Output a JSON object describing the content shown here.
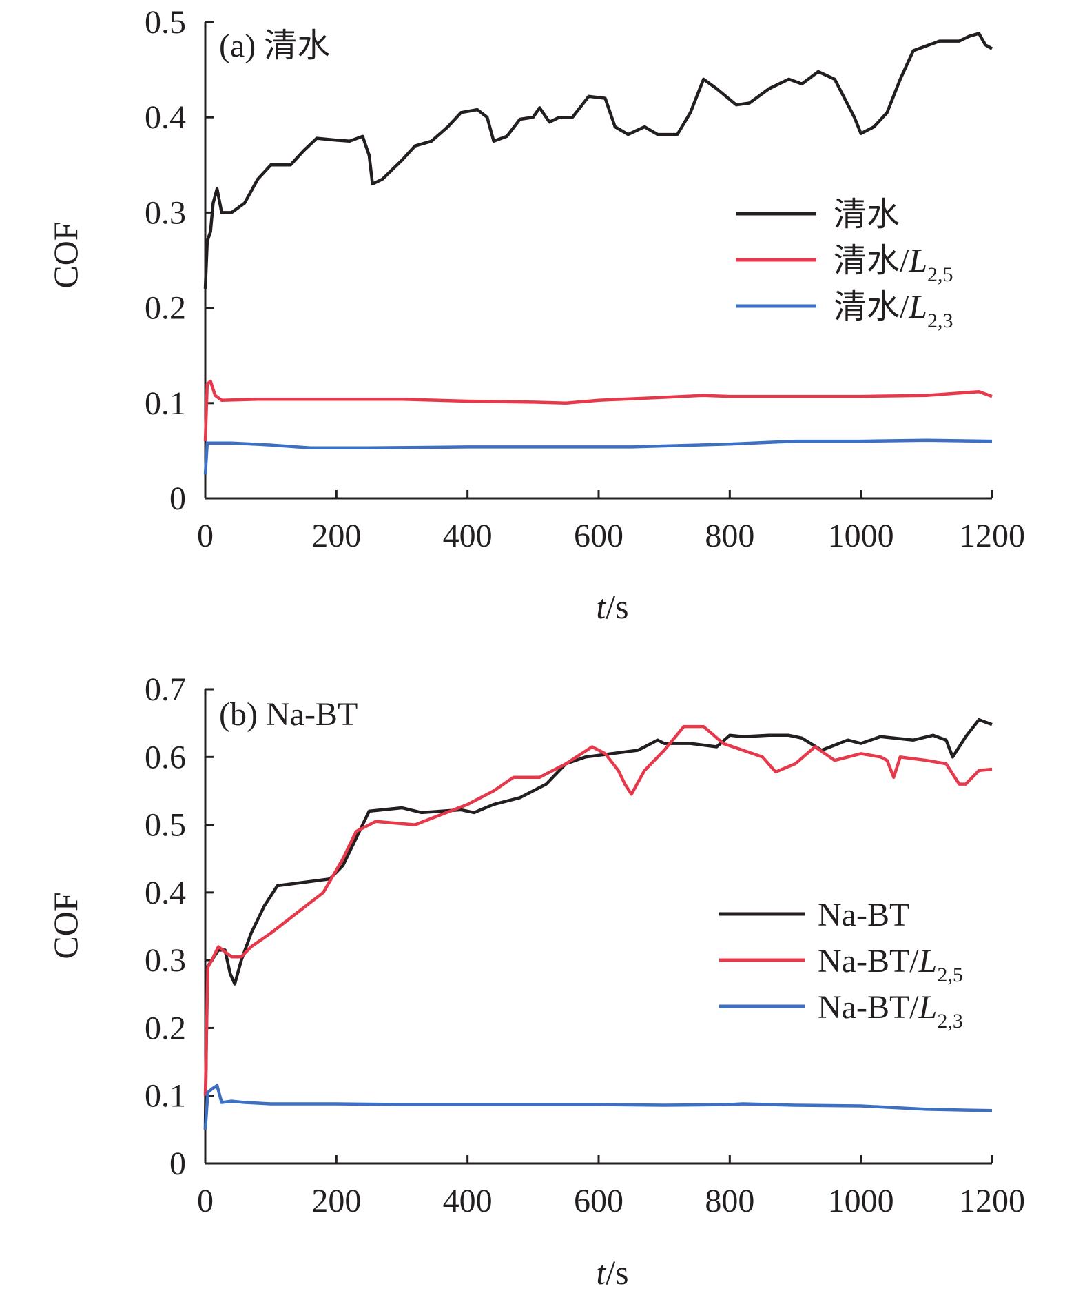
{
  "chart_data": [
    {
      "type": "line",
      "panel_label": "(a) 清水",
      "xlabel": {
        "var": "t",
        "unit": "/s"
      },
      "ylabel": "COF",
      "xlim": [
        0,
        1200
      ],
      "ylim": [
        0,
        0.5
      ],
      "xticks": [
        "0",
        "200",
        "400",
        "600",
        "800",
        "1000",
        "1200"
      ],
      "yticks": [
        "0",
        "0.1",
        "0.2",
        "0.3",
        "0.4",
        "0.5"
      ],
      "legend_position": "right",
      "series": [
        {
          "name": "清水",
          "legend_main": "清水",
          "legend_italic": "",
          "legend_sub": "",
          "color": "#231f20",
          "points": [
            [
              0,
              0.22
            ],
            [
              3,
              0.27
            ],
            [
              8,
              0.28
            ],
            [
              12,
              0.31
            ],
            [
              18,
              0.325
            ],
            [
              25,
              0.3
            ],
            [
              40,
              0.3
            ],
            [
              60,
              0.31
            ],
            [
              80,
              0.335
            ],
            [
              100,
              0.35
            ],
            [
              130,
              0.35
            ],
            [
              150,
              0.365
            ],
            [
              170,
              0.378
            ],
            [
              200,
              0.376
            ],
            [
              220,
              0.375
            ],
            [
              240,
              0.38
            ],
            [
              250,
              0.36
            ],
            [
              255,
              0.33
            ],
            [
              270,
              0.335
            ],
            [
              300,
              0.355
            ],
            [
              320,
              0.37
            ],
            [
              345,
              0.375
            ],
            [
              370,
              0.39
            ],
            [
              390,
              0.405
            ],
            [
              415,
              0.408
            ],
            [
              430,
              0.4
            ],
            [
              440,
              0.375
            ],
            [
              460,
              0.38
            ],
            [
              480,
              0.398
            ],
            [
              500,
              0.4
            ],
            [
              510,
              0.41
            ],
            [
              525,
              0.395
            ],
            [
              540,
              0.4
            ],
            [
              560,
              0.4
            ],
            [
              585,
              0.422
            ],
            [
              610,
              0.42
            ],
            [
              625,
              0.39
            ],
            [
              645,
              0.382
            ],
            [
              670,
              0.39
            ],
            [
              690,
              0.382
            ],
            [
              720,
              0.382
            ],
            [
              740,
              0.405
            ],
            [
              760,
              0.44
            ],
            [
              780,
              0.43
            ],
            [
              810,
              0.413
            ],
            [
              830,
              0.415
            ],
            [
              860,
              0.43
            ],
            [
              890,
              0.44
            ],
            [
              910,
              0.435
            ],
            [
              935,
              0.448
            ],
            [
              960,
              0.44
            ],
            [
              990,
              0.4
            ],
            [
              1000,
              0.383
            ],
            [
              1020,
              0.39
            ],
            [
              1040,
              0.405
            ],
            [
              1060,
              0.44
            ],
            [
              1080,
              0.47
            ],
            [
              1100,
              0.475
            ],
            [
              1120,
              0.48
            ],
            [
              1150,
              0.48
            ],
            [
              1165,
              0.485
            ],
            [
              1180,
              0.488
            ],
            [
              1190,
              0.476
            ],
            [
              1200,
              0.472
            ]
          ]
        },
        {
          "name": "清水/L2,5",
          "legend_main": "清水/",
          "legend_italic": "L",
          "legend_sub": "2,5",
          "color": "#e63a4c",
          "points": [
            [
              0,
              0.06
            ],
            [
              3,
              0.12
            ],
            [
              8,
              0.123
            ],
            [
              15,
              0.108
            ],
            [
              25,
              0.103
            ],
            [
              80,
              0.104
            ],
            [
              200,
              0.104
            ],
            [
              300,
              0.104
            ],
            [
              400,
              0.102
            ],
            [
              500,
              0.101
            ],
            [
              550,
              0.1
            ],
            [
              600,
              0.103
            ],
            [
              700,
              0.106
            ],
            [
              760,
              0.108
            ],
            [
              800,
              0.107
            ],
            [
              900,
              0.107
            ],
            [
              1000,
              0.107
            ],
            [
              1100,
              0.108
            ],
            [
              1180,
              0.112
            ],
            [
              1200,
              0.107
            ]
          ]
        },
        {
          "name": "清水/L2,3",
          "legend_main": "清水/",
          "legend_italic": "L",
          "legend_sub": "2,3",
          "color": "#3d6fc2",
          "points": [
            [
              0,
              0.025
            ],
            [
              3,
              0.058
            ],
            [
              10,
              0.058
            ],
            [
              40,
              0.058
            ],
            [
              100,
              0.056
            ],
            [
              160,
              0.053
            ],
            [
              250,
              0.053
            ],
            [
              400,
              0.054
            ],
            [
              550,
              0.054
            ],
            [
              650,
              0.054
            ],
            [
              700,
              0.055
            ],
            [
              800,
              0.057
            ],
            [
              900,
              0.06
            ],
            [
              1000,
              0.06
            ],
            [
              1100,
              0.061
            ],
            [
              1200,
              0.06
            ]
          ]
        }
      ]
    },
    {
      "type": "line",
      "panel_label": "(b) Na-BT",
      "xlabel": {
        "var": "t",
        "unit": "/s"
      },
      "ylabel": "COF",
      "xlim": [
        0,
        1200
      ],
      "ylim": [
        0,
        0.7
      ],
      "xticks": [
        "0",
        "200",
        "400",
        "600",
        "800",
        "1000",
        "1200"
      ],
      "yticks": [
        "0",
        "0.1",
        "0.2",
        "0.3",
        "0.4",
        "0.5",
        "0.6",
        "0.7"
      ],
      "legend_position": "right",
      "series": [
        {
          "name": "Na-BT",
          "legend_main": "Na-BT",
          "legend_italic": "",
          "legend_sub": "",
          "color": "#231f20",
          "points": [
            [
              0,
              0.05
            ],
            [
              3,
              0.29
            ],
            [
              10,
              0.3
            ],
            [
              20,
              0.315
            ],
            [
              30,
              0.315
            ],
            [
              38,
              0.28
            ],
            [
              45,
              0.265
            ],
            [
              55,
              0.3
            ],
            [
              70,
              0.34
            ],
            [
              90,
              0.38
            ],
            [
              110,
              0.41
            ],
            [
              150,
              0.415
            ],
            [
              190,
              0.42
            ],
            [
              210,
              0.44
            ],
            [
              230,
              0.48
            ],
            [
              250,
              0.52
            ],
            [
              300,
              0.525
            ],
            [
              330,
              0.518
            ],
            [
              360,
              0.52
            ],
            [
              390,
              0.522
            ],
            [
              410,
              0.518
            ],
            [
              440,
              0.53
            ],
            [
              480,
              0.54
            ],
            [
              520,
              0.56
            ],
            [
              550,
              0.59
            ],
            [
              580,
              0.6
            ],
            [
              620,
              0.605
            ],
            [
              660,
              0.61
            ],
            [
              690,
              0.625
            ],
            [
              700,
              0.62
            ],
            [
              740,
              0.62
            ],
            [
              780,
              0.615
            ],
            [
              800,
              0.632
            ],
            [
              820,
              0.63
            ],
            [
              860,
              0.632
            ],
            [
              890,
              0.632
            ],
            [
              910,
              0.628
            ],
            [
              940,
              0.61
            ],
            [
              980,
              0.625
            ],
            [
              1000,
              0.62
            ],
            [
              1030,
              0.63
            ],
            [
              1080,
              0.625
            ],
            [
              1110,
              0.632
            ],
            [
              1130,
              0.625
            ],
            [
              1140,
              0.6
            ],
            [
              1160,
              0.63
            ],
            [
              1180,
              0.655
            ],
            [
              1200,
              0.648
            ]
          ]
        },
        {
          "name": "Na-BT/L2,5",
          "legend_main": "Na-BT/",
          "legend_italic": "L",
          "legend_sub": "2,5",
          "color": "#e63a4c",
          "points": [
            [
              0,
              0.1
            ],
            [
              4,
              0.29
            ],
            [
              10,
              0.3
            ],
            [
              20,
              0.32
            ],
            [
              40,
              0.305
            ],
            [
              55,
              0.305
            ],
            [
              70,
              0.32
            ],
            [
              100,
              0.34
            ],
            [
              140,
              0.37
            ],
            [
              180,
              0.4
            ],
            [
              210,
              0.45
            ],
            [
              230,
              0.49
            ],
            [
              260,
              0.505
            ],
            [
              320,
              0.5
            ],
            [
              360,
              0.515
            ],
            [
              400,
              0.53
            ],
            [
              440,
              0.55
            ],
            [
              470,
              0.57
            ],
            [
              510,
              0.57
            ],
            [
              550,
              0.59
            ],
            [
              590,
              0.615
            ],
            [
              610,
              0.605
            ],
            [
              630,
              0.58
            ],
            [
              640,
              0.56
            ],
            [
              650,
              0.545
            ],
            [
              670,
              0.58
            ],
            [
              700,
              0.61
            ],
            [
              730,
              0.645
            ],
            [
              760,
              0.645
            ],
            [
              790,
              0.62
            ],
            [
              820,
              0.61
            ],
            [
              850,
              0.6
            ],
            [
              870,
              0.578
            ],
            [
              900,
              0.59
            ],
            [
              930,
              0.615
            ],
            [
              960,
              0.595
            ],
            [
              1000,
              0.605
            ],
            [
              1030,
              0.6
            ],
            [
              1040,
              0.595
            ],
            [
              1050,
              0.57
            ],
            [
              1060,
              0.6
            ],
            [
              1100,
              0.595
            ],
            [
              1130,
              0.59
            ],
            [
              1150,
              0.56
            ],
            [
              1160,
              0.56
            ],
            [
              1180,
              0.58
            ],
            [
              1200,
              0.582
            ]
          ]
        },
        {
          "name": "Na-BT/L2,3",
          "legend_main": "Na-BT/",
          "legend_italic": "L",
          "legend_sub": "2,3",
          "color": "#3d6fc2",
          "points": [
            [
              0,
              0.05
            ],
            [
              4,
              0.105
            ],
            [
              10,
              0.11
            ],
            [
              18,
              0.115
            ],
            [
              25,
              0.09
            ],
            [
              40,
              0.092
            ],
            [
              60,
              0.09
            ],
            [
              100,
              0.088
            ],
            [
              200,
              0.088
            ],
            [
              300,
              0.087
            ],
            [
              400,
              0.087
            ],
            [
              500,
              0.087
            ],
            [
              600,
              0.087
            ],
            [
              700,
              0.086
            ],
            [
              800,
              0.087
            ],
            [
              820,
              0.088
            ],
            [
              900,
              0.086
            ],
            [
              1000,
              0.085
            ],
            [
              1100,
              0.08
            ],
            [
              1200,
              0.078
            ]
          ]
        }
      ]
    }
  ]
}
